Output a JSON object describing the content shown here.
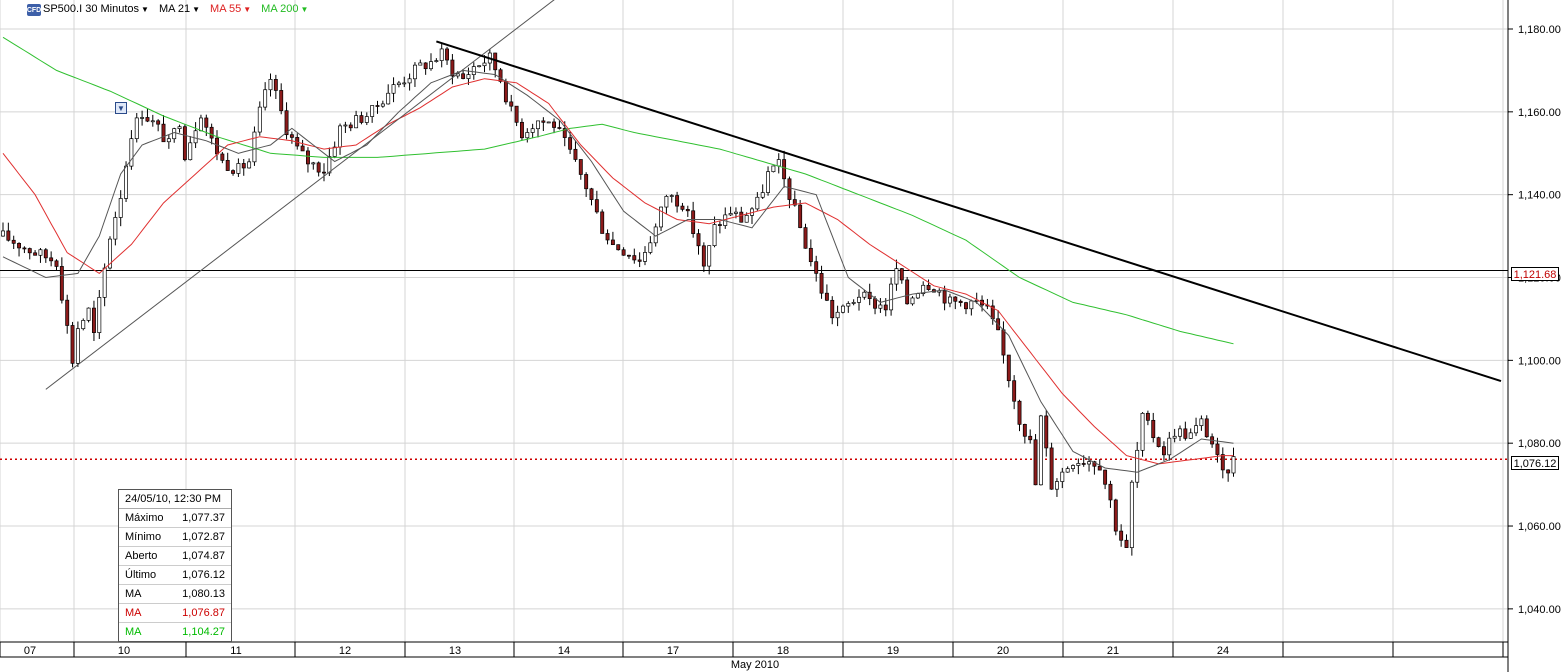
{
  "toolbar": {
    "icon_label": "CFD",
    "symbol": "SP500.I 30 Minutos",
    "ma21": "MA 21",
    "ma55": "MA 55",
    "ma200": "MA 200"
  },
  "colors": {
    "grid": "#d4d4d4",
    "candle_up": "#ffffff",
    "candle_down": "#8b1a1a",
    "ma21": "#555555",
    "ma55": "#e03030",
    "ma200": "#30c030",
    "current_price_line": "#cc0000"
  },
  "info_box": {
    "datetime": "24/05/10, 12:30 PM",
    "rows": [
      {
        "label": "Máximo",
        "value": "1,077.37",
        "color": "#000000"
      },
      {
        "label": "Mínimo",
        "value": "1,072.87",
        "color": "#000000"
      },
      {
        "label": "Aberto",
        "value": "1,074.87",
        "color": "#000000"
      },
      {
        "label": "Último",
        "value": "1,076.12",
        "color": "#000000"
      },
      {
        "label": "MA",
        "value": "1,080.13",
        "color": "#000000"
      },
      {
        "label": "MA",
        "value": "1,076.87",
        "color": "#cc0000"
      },
      {
        "label": "MA",
        "value": "1,104.27",
        "color": "#00bb00"
      }
    ]
  },
  "price_tags": {
    "level_line": "1,121.68",
    "last_price": "1,076.12"
  },
  "chart_data": {
    "type": "candlestick",
    "ylim": [
      1032,
      1187
    ],
    "y_ticks": [
      1040,
      1060,
      1080,
      1100,
      1120,
      1140,
      1160,
      1180
    ],
    "y_tick_labels": [
      "1,040.00",
      "1,060.00",
      "1,080.00",
      "1,100.00",
      "1,120.00",
      "1,140.00",
      "1,160.00",
      "1,180.00"
    ],
    "x_labels": [
      "07",
      "10",
      "11",
      "12",
      "13",
      "14",
      "17",
      "18",
      "19",
      "20",
      "21",
      "24"
    ],
    "x_sublabel": "May 2010",
    "horizontal_level": 1121.68,
    "last_price": 1076.12,
    "price_path": [
      [
        0,
        1130
      ],
      [
        6,
        1126
      ],
      [
        10,
        1124
      ],
      [
        13,
        1100
      ],
      [
        14,
        1108
      ],
      [
        16,
        1112
      ],
      [
        17,
        1106
      ],
      [
        20,
        1130
      ],
      [
        22,
        1140
      ],
      [
        24,
        1155
      ],
      [
        26,
        1160
      ],
      [
        29,
        1156
      ],
      [
        31,
        1152
      ],
      [
        33,
        1158
      ],
      [
        34,
        1150
      ],
      [
        37,
        1160
      ],
      [
        39,
        1153
      ],
      [
        41,
        1148
      ],
      [
        44,
        1146
      ],
      [
        46,
        1148
      ],
      [
        48,
        1160
      ],
      [
        50,
        1168
      ],
      [
        53,
        1156
      ],
      [
        55,
        1151
      ],
      [
        57,
        1148
      ],
      [
        60,
        1146
      ],
      [
        63,
        1156
      ],
      [
        66,
        1158
      ],
      [
        69,
        1160
      ],
      [
        72,
        1165
      ],
      [
        75,
        1168
      ],
      [
        78,
        1171
      ],
      [
        80,
        1172
      ],
      [
        82,
        1174
      ],
      [
        84,
        1170
      ],
      [
        86,
        1168
      ],
      [
        88,
        1171
      ],
      [
        91,
        1173
      ],
      [
        93,
        1168
      ],
      [
        95,
        1160
      ],
      [
        97,
        1155
      ],
      [
        100,
        1158
      ],
      [
        103,
        1157
      ],
      [
        106,
        1150
      ],
      [
        109,
        1142
      ],
      [
        112,
        1132
      ],
      [
        114,
        1128
      ],
      [
        117,
        1126
      ],
      [
        119,
        1124
      ],
      [
        122,
        1132
      ],
      [
        124,
        1140
      ],
      [
        127,
        1138
      ],
      [
        130,
        1128
      ],
      [
        131,
        1122
      ],
      [
        133,
        1132
      ],
      [
        136,
        1136
      ],
      [
        138,
        1134
      ],
      [
        141,
        1138
      ],
      [
        143,
        1145
      ],
      [
        145,
        1147
      ],
      [
        147,
        1140
      ],
      [
        149,
        1132
      ],
      [
        151,
        1124
      ],
      [
        153,
        1117
      ],
      [
        155,
        1111
      ],
      [
        157,
        1112
      ],
      [
        160,
        1116
      ],
      [
        162,
        1114
      ],
      [
        165,
        1113
      ],
      [
        167,
        1122
      ],
      [
        169,
        1114
      ],
      [
        172,
        1119
      ],
      [
        174,
        1118
      ],
      [
        177,
        1114
      ],
      [
        180,
        1114
      ],
      [
        182,
        1114
      ],
      [
        184,
        1112
      ],
      [
        186,
        1106
      ],
      [
        188,
        1096
      ],
      [
        190,
        1086
      ],
      [
        192,
        1080
      ],
      [
        193,
        1070
      ],
      [
        194,
        1086
      ],
      [
        196,
        1070
      ],
      [
        198,
        1073
      ],
      [
        200,
        1076
      ],
      [
        203,
        1076
      ],
      [
        205,
        1075
      ],
      [
        207,
        1066
      ],
      [
        208,
        1060
      ],
      [
        210,
        1054
      ],
      [
        211,
        1070
      ],
      [
        213,
        1086
      ],
      [
        215,
        1082
      ],
      [
        217,
        1078
      ],
      [
        219,
        1083
      ],
      [
        222,
        1082
      ],
      [
        224,
        1085
      ],
      [
        226,
        1080
      ],
      [
        228,
        1072
      ],
      [
        230,
        1076
      ]
    ],
    "ma21_path": [
      [
        0,
        1125
      ],
      [
        8,
        1120
      ],
      [
        14,
        1121
      ],
      [
        18,
        1130
      ],
      [
        22,
        1145
      ],
      [
        26,
        1152
      ],
      [
        32,
        1155
      ],
      [
        38,
        1153
      ],
      [
        44,
        1150
      ],
      [
        50,
        1152
      ],
      [
        54,
        1156
      ],
      [
        58,
        1152
      ],
      [
        62,
        1148
      ],
      [
        68,
        1152
      ],
      [
        74,
        1160
      ],
      [
        80,
        1167
      ],
      [
        86,
        1170
      ],
      [
        92,
        1169
      ],
      [
        98,
        1164
      ],
      [
        104,
        1158
      ],
      [
        110,
        1148
      ],
      [
        116,
        1136
      ],
      [
        122,
        1130
      ],
      [
        128,
        1134
      ],
      [
        134,
        1134
      ],
      [
        140,
        1132
      ],
      [
        146,
        1142
      ],
      [
        152,
        1140
      ],
      [
        158,
        1120
      ],
      [
        164,
        1114
      ],
      [
        170,
        1116
      ],
      [
        176,
        1117
      ],
      [
        182,
        1114
      ],
      [
        188,
        1106
      ],
      [
        194,
        1090
      ],
      [
        200,
        1078
      ],
      [
        206,
        1074
      ],
      [
        212,
        1073
      ],
      [
        218,
        1076
      ],
      [
        224,
        1081
      ],
      [
        230,
        1080
      ]
    ],
    "ma55_path": [
      [
        0,
        1150
      ],
      [
        6,
        1140
      ],
      [
        12,
        1126
      ],
      [
        18,
        1121
      ],
      [
        24,
        1128
      ],
      [
        30,
        1138
      ],
      [
        36,
        1145
      ],
      [
        42,
        1152
      ],
      [
        48,
        1154
      ],
      [
        54,
        1153
      ],
      [
        60,
        1151
      ],
      [
        66,
        1152
      ],
      [
        72,
        1157
      ],
      [
        78,
        1161
      ],
      [
        84,
        1166
      ],
      [
        90,
        1168
      ],
      [
        96,
        1167
      ],
      [
        102,
        1162
      ],
      [
        108,
        1152
      ],
      [
        114,
        1144
      ],
      [
        120,
        1138
      ],
      [
        126,
        1134
      ],
      [
        132,
        1133
      ],
      [
        138,
        1135
      ],
      [
        144,
        1137
      ],
      [
        150,
        1138
      ],
      [
        156,
        1134
      ],
      [
        162,
        1128
      ],
      [
        168,
        1123
      ],
      [
        174,
        1118
      ],
      [
        180,
        1116
      ],
      [
        186,
        1112
      ],
      [
        192,
        1102
      ],
      [
        198,
        1092
      ],
      [
        204,
        1084
      ],
      [
        210,
        1077
      ],
      [
        216,
        1075
      ],
      [
        222,
        1076
      ],
      [
        228,
        1077
      ],
      [
        230,
        1077
      ]
    ],
    "ma200_path": [
      [
        0,
        1178
      ],
      [
        10,
        1170
      ],
      [
        20,
        1165
      ],
      [
        30,
        1159
      ],
      [
        40,
        1154
      ],
      [
        50,
        1150
      ],
      [
        60,
        1149
      ],
      [
        70,
        1149
      ],
      [
        80,
        1150
      ],
      [
        90,
        1151
      ],
      [
        100,
        1154
      ],
      [
        106,
        1156
      ],
      [
        112,
        1157
      ],
      [
        118,
        1155
      ],
      [
        126,
        1153
      ],
      [
        134,
        1151
      ],
      [
        142,
        1148
      ],
      [
        150,
        1145
      ],
      [
        160,
        1140
      ],
      [
        170,
        1135
      ],
      [
        180,
        1129
      ],
      [
        190,
        1120
      ],
      [
        200,
        1114
      ],
      [
        210,
        1111
      ],
      [
        220,
        1107
      ],
      [
        230,
        1104
      ]
    ],
    "trendlines": [
      {
        "from": [
          8,
          1093
        ],
        "to": [
          106,
          1190
        ],
        "color": "#555555",
        "width": 1
      },
      {
        "from": [
          81,
          1177
        ],
        "to": [
          280,
          1095
        ],
        "color": "#000000",
        "width": 2
      }
    ]
  }
}
